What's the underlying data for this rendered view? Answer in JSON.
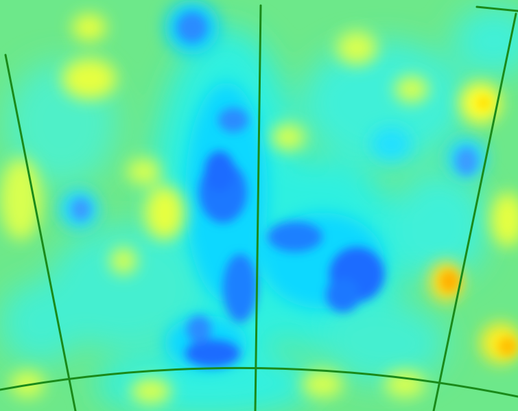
{
  "map": {
    "projection": "sky-map",
    "colormap": [
      "#2b6fff",
      "#00e6ff",
      "#7ff07a",
      "#ffff33",
      "#ffcc00",
      "#ff9900"
    ],
    "background_color": "#6de88a",
    "graticule_color": "#1a8a1a"
  }
}
